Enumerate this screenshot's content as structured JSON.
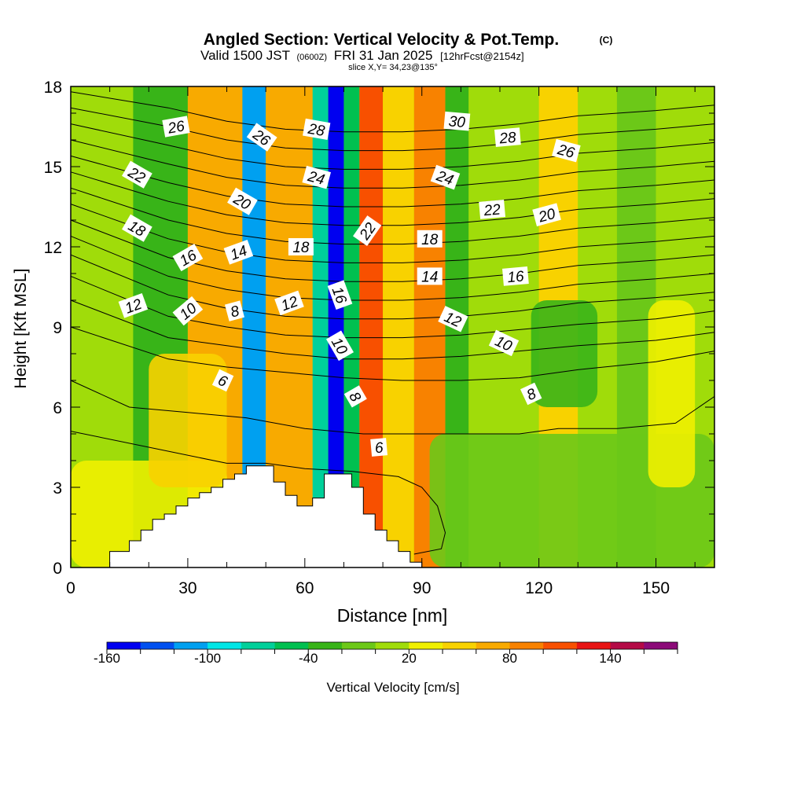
{
  "header": {
    "title": "Angled Section: Vertical Velocity & Pot.Temp.",
    "title_mark": "(C)",
    "valid_pre": "Valid 1500 JST",
    "valid_utc": "(0600Z)",
    "valid_post": "FRI 31 Jan 2025",
    "forecast_note": "[12hrFcst@2154z]",
    "slice": "slice X,Y= 34,23@135°"
  },
  "chart_data": {
    "type": "heatmap",
    "xlabel": "Distance [nm]",
    "ylabel": "Height [Kft MSL]",
    "xlim": [
      0,
      165
    ],
    "ylim": [
      0,
      18
    ],
    "x_ticks": [
      0,
      30,
      60,
      90,
      120,
      150
    ],
    "y_ticks": [
      0,
      3,
      6,
      9,
      12,
      15,
      18
    ],
    "x_tick_labels": [
      "0",
      "30",
      "60",
      "90",
      "120",
      "150"
    ],
    "y_tick_labels": [
      "0",
      "3",
      "6",
      "9",
      "12",
      "15",
      "18"
    ],
    "colorbar": {
      "label": "Vertical Velocity [cm/s]",
      "levels": [
        -160,
        -140,
        -120,
        -100,
        -80,
        -60,
        -40,
        -20,
        0,
        20,
        40,
        60,
        80,
        100,
        120,
        140,
        160,
        180
      ],
      "colors": [
        "#0000f0",
        "#0050f0",
        "#00a0f0",
        "#00e6e6",
        "#00d09a",
        "#00c050",
        "#38b418",
        "#6cc818",
        "#a0dc0a",
        "#f0f000",
        "#f8d200",
        "#f8aa00",
        "#f88200",
        "#f85000",
        "#e81414",
        "#b40a46",
        "#8c0a78"
      ],
      "tick_labels": [
        "-160",
        "-100",
        "-40",
        "20",
        "80",
        "140"
      ],
      "tick_values": [
        -160,
        -100,
        -40,
        20,
        80,
        140
      ]
    },
    "velocity_columns": [
      {
        "x": 0,
        "w": 16,
        "value": 10
      },
      {
        "x": 16,
        "w": 14,
        "value": -30
      },
      {
        "x": 30,
        "w": 14,
        "value": 70
      },
      {
        "x": 44,
        "w": 6,
        "value": -110
      },
      {
        "x": 50,
        "w": 12,
        "value": 70
      },
      {
        "x": 62,
        "w": 4,
        "value": -80
      },
      {
        "x": 66,
        "w": 4,
        "value": -160
      },
      {
        "x": 70,
        "w": 4,
        "value": -60
      },
      {
        "x": 74,
        "w": 6,
        "value": 110
      },
      {
        "x": 80,
        "w": 8,
        "value": 50
      },
      {
        "x": 88,
        "w": 8,
        "value": 80
      },
      {
        "x": 96,
        "w": 6,
        "value": -40
      },
      {
        "x": 102,
        "w": 18,
        "value": 10
      },
      {
        "x": 120,
        "w": 10,
        "value": 40
      },
      {
        "x": 130,
        "w": 10,
        "value": 10
      },
      {
        "x": 140,
        "w": 10,
        "value": -20
      },
      {
        "x": 150,
        "w": 15,
        "value": 10
      }
    ],
    "velocity_patches": [
      {
        "x0": 0,
        "x1": 40,
        "y0": 0,
        "y1": 4,
        "value": 30
      },
      {
        "x0": 20,
        "x1": 40,
        "y0": 3,
        "y1": 8,
        "value": 50
      },
      {
        "x0": 92,
        "x1": 165,
        "y0": 0,
        "y1": 5,
        "value": -10
      },
      {
        "x0": 118,
        "x1": 135,
        "y0": 6,
        "y1": 10,
        "value": -30
      },
      {
        "x0": 148,
        "x1": 160,
        "y0": 3,
        "y1": 10,
        "value": 30
      }
    ],
    "terrain": [
      [
        0,
        0
      ],
      [
        10,
        0
      ],
      [
        10,
        0.6
      ],
      [
        15,
        0.6
      ],
      [
        15,
        1
      ],
      [
        18,
        1
      ],
      [
        18,
        1.4
      ],
      [
        21,
        1.4
      ],
      [
        21,
        1.8
      ],
      [
        24,
        1.8
      ],
      [
        24,
        2
      ],
      [
        27,
        2
      ],
      [
        27,
        2.3
      ],
      [
        30,
        2.3
      ],
      [
        30,
        2.6
      ],
      [
        33,
        2.6
      ],
      [
        33,
        2.8
      ],
      [
        36,
        2.8
      ],
      [
        36,
        3
      ],
      [
        39,
        3
      ],
      [
        39,
        3.3
      ],
      [
        42,
        3.3
      ],
      [
        42,
        3.5
      ],
      [
        45,
        3.5
      ],
      [
        45,
        3.8
      ],
      [
        52,
        3.8
      ],
      [
        52,
        3.2
      ],
      [
        55,
        3.2
      ],
      [
        55,
        2.7
      ],
      [
        58,
        2.7
      ],
      [
        58,
        2.3
      ],
      [
        62,
        2.3
      ],
      [
        62,
        2.6
      ],
      [
        65,
        2.6
      ],
      [
        65,
        3.5
      ],
      [
        72,
        3.5
      ],
      [
        72,
        3
      ],
      [
        75,
        3
      ],
      [
        75,
        2
      ],
      [
        78,
        2
      ],
      [
        78,
        1.4
      ],
      [
        81,
        1.4
      ],
      [
        81,
        1
      ],
      [
        84,
        1
      ],
      [
        84,
        0.6
      ],
      [
        87,
        0.6
      ],
      [
        87,
        0.2
      ],
      [
        90,
        0.2
      ],
      [
        90,
        0
      ]
    ],
    "isentropes": [
      [
        [
          0,
          5.1
        ],
        [
          20,
          4.5
        ],
        [
          40,
          3.9
        ],
        [
          50,
          3.9
        ],
        [
          60,
          3.7
        ],
        [
          72,
          3.6
        ],
        [
          84,
          3.4
        ],
        [
          90,
          3.0
        ],
        [
          94,
          2.3
        ],
        [
          96,
          1.3
        ],
        [
          95,
          0.7
        ],
        [
          88,
          0.5
        ]
      ],
      [
        [
          0,
          7.0
        ],
        [
          15,
          6.0
        ],
        [
          30,
          5.8
        ],
        [
          45,
          5.6
        ],
        [
          60,
          5.2
        ],
        [
          75,
          5.0
        ],
        [
          90,
          5.0
        ],
        [
          105,
          5.0
        ],
        [
          115,
          5.0
        ],
        [
          125,
          5.2
        ],
        [
          140,
          5.2
        ],
        [
          155,
          5.4
        ],
        [
          165,
          6.4
        ]
      ],
      [
        [
          0,
          9.0
        ],
        [
          25,
          7.8
        ],
        [
          40,
          7.5
        ],
        [
          55,
          7.3
        ],
        [
          70,
          7.1
        ],
        [
          85,
          7.0
        ],
        [
          100,
          7.0
        ],
        [
          115,
          7.1
        ],
        [
          130,
          7.4
        ],
        [
          150,
          7.7
        ],
        [
          165,
          8.1
        ]
      ],
      [
        [
          0,
          10.0
        ],
        [
          25,
          8.6
        ],
        [
          40,
          8.3
        ],
        [
          55,
          8.0
        ],
        [
          70,
          7.8
        ],
        [
          85,
          7.8
        ],
        [
          100,
          7.9
        ],
        [
          115,
          8.1
        ],
        [
          130,
          8.3
        ],
        [
          150,
          8.5
        ],
        [
          165,
          8.8
        ]
      ],
      [
        [
          0,
          10.9
        ],
        [
          25,
          9.4
        ],
        [
          40,
          9.0
        ],
        [
          55,
          8.7
        ],
        [
          70,
          8.6
        ],
        [
          85,
          8.6
        ],
        [
          100,
          8.7
        ],
        [
          115,
          8.9
        ],
        [
          130,
          9.1
        ],
        [
          150,
          9.3
        ],
        [
          165,
          9.6
        ]
      ],
      [
        [
          0,
          11.7
        ],
        [
          25,
          10.2
        ],
        [
          40,
          9.7
        ],
        [
          55,
          9.4
        ],
        [
          70,
          9.3
        ],
        [
          85,
          9.3
        ],
        [
          100,
          9.4
        ],
        [
          115,
          9.6
        ],
        [
          130,
          9.9
        ],
        [
          150,
          10.1
        ],
        [
          165,
          10.3
        ]
      ],
      [
        [
          0,
          12.4
        ],
        [
          25,
          10.9
        ],
        [
          40,
          10.4
        ],
        [
          55,
          10.1
        ],
        [
          70,
          10.0
        ],
        [
          85,
          10.0
        ],
        [
          100,
          10.1
        ],
        [
          115,
          10.3
        ],
        [
          130,
          10.6
        ],
        [
          150,
          10.8
        ],
        [
          165,
          11.0
        ]
      ],
      [
        [
          0,
          13.0
        ],
        [
          25,
          11.6
        ],
        [
          40,
          11.1
        ],
        [
          55,
          10.8
        ],
        [
          70,
          10.7
        ],
        [
          85,
          10.7
        ],
        [
          100,
          10.8
        ],
        [
          115,
          11.0
        ],
        [
          130,
          11.3
        ],
        [
          150,
          11.5
        ],
        [
          165,
          11.7
        ]
      ],
      [
        [
          0,
          13.6
        ],
        [
          25,
          12.3
        ],
        [
          40,
          11.8
        ],
        [
          55,
          11.5
        ],
        [
          70,
          11.4
        ],
        [
          85,
          11.4
        ],
        [
          100,
          11.5
        ],
        [
          115,
          11.7
        ],
        [
          130,
          12.0
        ],
        [
          150,
          12.2
        ],
        [
          165,
          12.4
        ]
      ],
      [
        [
          0,
          14.2
        ],
        [
          25,
          13.0
        ],
        [
          40,
          12.5
        ],
        [
          55,
          12.2
        ],
        [
          70,
          12.1
        ],
        [
          85,
          12.1
        ],
        [
          100,
          12.2
        ],
        [
          115,
          12.4
        ],
        [
          130,
          12.7
        ],
        [
          150,
          12.9
        ],
        [
          165,
          13.1
        ]
      ],
      [
        [
          0,
          14.8
        ],
        [
          25,
          13.7
        ],
        [
          40,
          13.2
        ],
        [
          55,
          12.9
        ],
        [
          70,
          12.8
        ],
        [
          85,
          12.8
        ],
        [
          100,
          12.9
        ],
        [
          115,
          13.1
        ],
        [
          130,
          13.4
        ],
        [
          150,
          13.6
        ],
        [
          165,
          13.8
        ]
      ],
      [
        [
          0,
          15.4
        ],
        [
          25,
          14.4
        ],
        [
          40,
          13.9
        ],
        [
          55,
          13.6
        ],
        [
          70,
          13.5
        ],
        [
          85,
          13.5
        ],
        [
          100,
          13.6
        ],
        [
          115,
          13.8
        ],
        [
          130,
          14.1
        ],
        [
          150,
          14.3
        ],
        [
          165,
          14.5
        ]
      ],
      [
        [
          0,
          16.0
        ],
        [
          25,
          15.1
        ],
        [
          40,
          14.6
        ],
        [
          55,
          14.3
        ],
        [
          70,
          14.2
        ],
        [
          85,
          14.2
        ],
        [
          100,
          14.3
        ],
        [
          115,
          14.5
        ],
        [
          130,
          14.8
        ],
        [
          150,
          15.0
        ],
        [
          165,
          15.2
        ]
      ],
      [
        [
          0,
          16.6
        ],
        [
          25,
          15.8
        ],
        [
          40,
          15.3
        ],
        [
          55,
          15.0
        ],
        [
          70,
          14.9
        ],
        [
          85,
          14.9
        ],
        [
          100,
          15.0
        ],
        [
          115,
          15.2
        ],
        [
          130,
          15.5
        ],
        [
          150,
          15.7
        ],
        [
          165,
          15.9
        ]
      ],
      [
        [
          0,
          17.2
        ],
        [
          25,
          16.5
        ],
        [
          40,
          16.0
        ],
        [
          55,
          15.7
        ],
        [
          70,
          15.6
        ],
        [
          85,
          15.6
        ],
        [
          100,
          15.7
        ],
        [
          115,
          15.9
        ],
        [
          130,
          16.2
        ],
        [
          150,
          16.4
        ],
        [
          165,
          16.6
        ]
      ],
      [
        [
          0,
          17.8
        ],
        [
          25,
          17.2
        ],
        [
          40,
          16.7
        ],
        [
          55,
          16.4
        ],
        [
          70,
          16.3
        ],
        [
          85,
          16.3
        ],
        [
          100,
          16.4
        ],
        [
          115,
          16.6
        ],
        [
          130,
          16.9
        ],
        [
          150,
          17.1
        ],
        [
          165,
          17.3
        ]
      ]
    ],
    "contour_labels": [
      {
        "text": "26",
        "x": 27,
        "y": 16.5,
        "angle": -10
      },
      {
        "text": "26",
        "x": 49,
        "y": 16.1,
        "angle": 35
      },
      {
        "text": "28",
        "x": 63,
        "y": 16.4,
        "angle": 10
      },
      {
        "text": "30",
        "x": 99,
        "y": 16.7,
        "angle": 5
      },
      {
        "text": "28",
        "x": 112,
        "y": 16.1,
        "angle": -5
      },
      {
        "text": "26",
        "x": 127,
        "y": 15.6,
        "angle": 15
      },
      {
        "text": "22",
        "x": 17,
        "y": 14.7,
        "angle": 30
      },
      {
        "text": "24",
        "x": 63,
        "y": 14.6,
        "angle": 15
      },
      {
        "text": "24",
        "x": 96,
        "y": 14.6,
        "angle": 20
      },
      {
        "text": "20",
        "x": 44,
        "y": 13.7,
        "angle": 30
      },
      {
        "text": "22",
        "x": 108,
        "y": 13.4,
        "angle": -5
      },
      {
        "text": "20",
        "x": 122,
        "y": 13.2,
        "angle": -15
      },
      {
        "text": "18",
        "x": 17,
        "y": 12.7,
        "angle": 30
      },
      {
        "text": "22",
        "x": 76,
        "y": 12.6,
        "angle": -55
      },
      {
        "text": "18",
        "x": 92,
        "y": 12.3,
        "angle": 0
      },
      {
        "text": "16",
        "x": 30,
        "y": 11.6,
        "angle": -30
      },
      {
        "text": "14",
        "x": 43,
        "y": 11.8,
        "angle": -20
      },
      {
        "text": "18",
        "x": 59,
        "y": 12.0,
        "angle": 0
      },
      {
        "text": "16",
        "x": 69,
        "y": 10.2,
        "angle": 70
      },
      {
        "text": "14",
        "x": 92,
        "y": 10.9,
        "angle": 0
      },
      {
        "text": "16",
        "x": 114,
        "y": 10.9,
        "angle": -5
      },
      {
        "text": "12",
        "x": 16,
        "y": 9.8,
        "angle": -20
      },
      {
        "text": "10",
        "x": 30,
        "y": 9.6,
        "angle": -40
      },
      {
        "text": "8",
        "x": 42,
        "y": 9.6,
        "angle": -15
      },
      {
        "text": "12",
        "x": 56,
        "y": 9.9,
        "angle": -20
      },
      {
        "text": "12",
        "x": 98,
        "y": 9.3,
        "angle": 25
      },
      {
        "text": "10",
        "x": 69,
        "y": 8.3,
        "angle": 60
      },
      {
        "text": "10",
        "x": 111,
        "y": 8.4,
        "angle": 25
      },
      {
        "text": "6",
        "x": 39,
        "y": 7.0,
        "angle": 25
      },
      {
        "text": "8",
        "x": 73,
        "y": 6.4,
        "angle": 60
      },
      {
        "text": "8",
        "x": 118,
        "y": 6.5,
        "angle": -25
      },
      {
        "text": "6",
        "x": 79,
        "y": 4.5,
        "angle": -5
      }
    ]
  }
}
